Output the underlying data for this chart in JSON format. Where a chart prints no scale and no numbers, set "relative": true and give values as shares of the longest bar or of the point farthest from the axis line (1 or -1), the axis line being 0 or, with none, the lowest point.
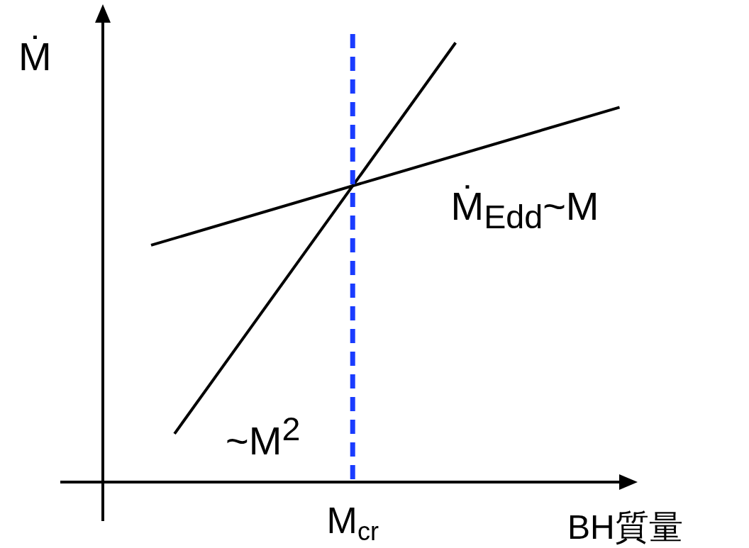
{
  "chart_data": {
    "type": "line",
    "relative": true,
    "xlabel": "BH質量",
    "ylabel": "Ṁ",
    "marker": "none",
    "categories": [
      null,
      null,
      null,
      null,
      null,
      null,
      null,
      null,
      null,
      null,
      null,
      null,
      null,
      null,
      null,
      null,
      null,
      null,
      null,
      null,
      null
    ],
    "series": [
      {
        "name": "~M$^{2}$",
        "color": "#000000",
        "values": [
          null,
          0.11,
          null,
          null,
          null,
          null,
          null,
          null,
          null,
          null,
          null,
          null,
          null,
          1,
          null,
          null,
          null,
          null,
          null,
          null,
          null
        ]
      },
      {
        "name": "Ṁ$_{Edd}$~M",
        "color": "#000000",
        "values": [
          0.539,
          null,
          null,
          null,
          null,
          null,
          null,
          null,
          null,
          null,
          null,
          null,
          null,
          null,
          null,
          null,
          null,
          null,
          null,
          null,
          0.853
        ]
      }
    ],
    "ref_lines": [
      {
        "axis": "x",
        "label": "M$_{cr}$",
        "color": "#1a3cff",
        "line_style": "dashed"
      }
    ]
  }
}
